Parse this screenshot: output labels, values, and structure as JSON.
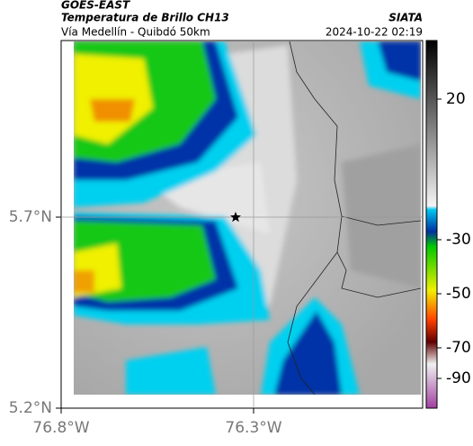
{
  "header": {
    "satellite": "GOES-EAST",
    "title": "Temperatura de Brillo CH13",
    "subtitle": "Vía Medellín - Quibdó 50km",
    "source": "SIATA",
    "datetime": "2024-10-22 02:19"
  },
  "axes": {
    "y_labels": [
      "5.7°N",
      "5.2°N"
    ],
    "x_labels": [
      "76.8°W",
      "76.3°W"
    ]
  },
  "colorbar": {
    "ticks": [
      20,
      -30,
      -50,
      -70,
      -90
    ]
  }
}
